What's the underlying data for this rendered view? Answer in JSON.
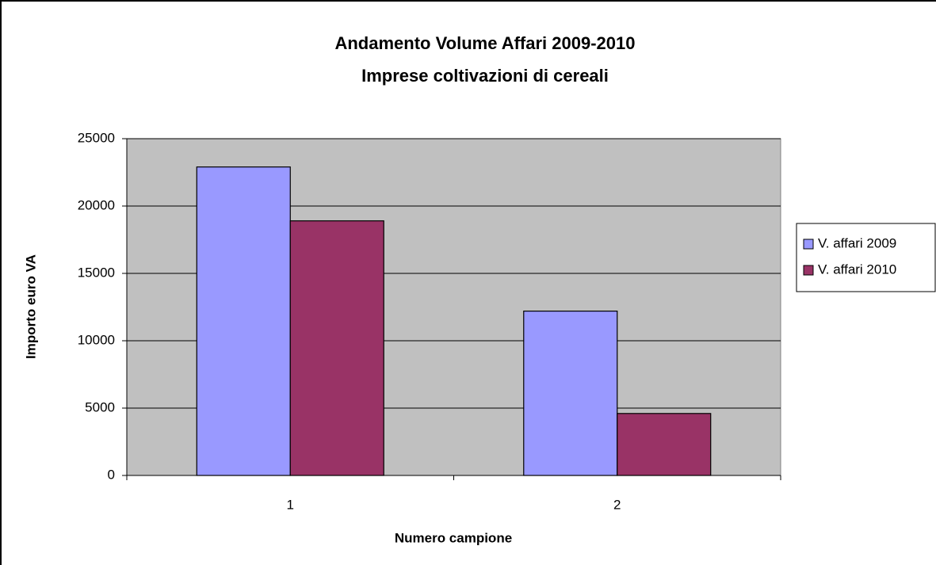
{
  "chart_data": {
    "type": "bar",
    "title": "Andamento Volume Affari 2009-2010",
    "subtitle": "Imprese coltivazioni di cereali",
    "x_label": "Numero campione",
    "y_label": "Importo euro VA",
    "categories": [
      "1",
      "2"
    ],
    "series": [
      {
        "name": "V. affari 2009",
        "color": "#9999ff",
        "values": [
          22900,
          12200
        ]
      },
      {
        "name": "V. affari 2010",
        "color": "#993366",
        "values": [
          18900,
          4600
        ]
      }
    ],
    "ylim": [
      0,
      25000
    ],
    "yticks": [
      0,
      5000,
      10000,
      15000,
      20000,
      25000
    ],
    "grid": true,
    "legend": "right"
  }
}
